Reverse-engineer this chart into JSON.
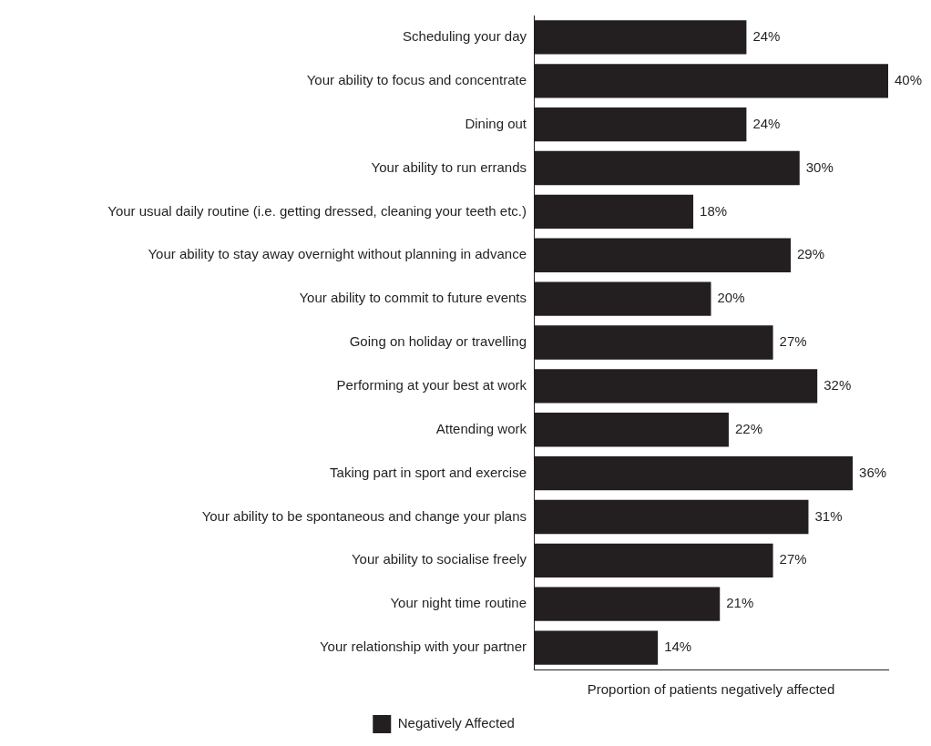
{
  "chart_data": {
    "type": "bar",
    "orientation": "horizontal",
    "categories": [
      "Scheduling your day",
      "Your ability to focus and concentrate",
      "Dining out",
      "Your ability to run errands",
      "Your usual daily routine (i.e. getting dressed, cleaning your teeth etc.)",
      "Your ability to stay away overnight without planning in advance",
      "Your ability to commit to future events",
      "Going on holiday or travelling",
      "Performing at your best at work",
      "Attending work",
      "Taking part in sport and exercise",
      "Your ability to be spontaneous and change your plans",
      "Your ability to socialise freely",
      "Your night time routine",
      "Your relationship with your partner"
    ],
    "series": [
      {
        "name": "Negatively Affected",
        "color": "#231f20",
        "values": [
          24,
          40,
          24,
          30,
          18,
          29,
          20,
          27,
          32,
          22,
          36,
          31,
          27,
          21,
          14
        ],
        "value_labels": [
          "24%",
          "40%",
          "24%",
          "30%",
          "18%",
          "29%",
          "20%",
          "27%",
          "32%",
          "22%",
          "36%",
          "31%",
          "27%",
          "21%",
          "14%"
        ]
      }
    ],
    "xlabel": "Proportion of patients negatively affected",
    "xlim": [
      0,
      40
    ],
    "tick_labels": "y",
    "grid": false,
    "legend": "bottom"
  }
}
